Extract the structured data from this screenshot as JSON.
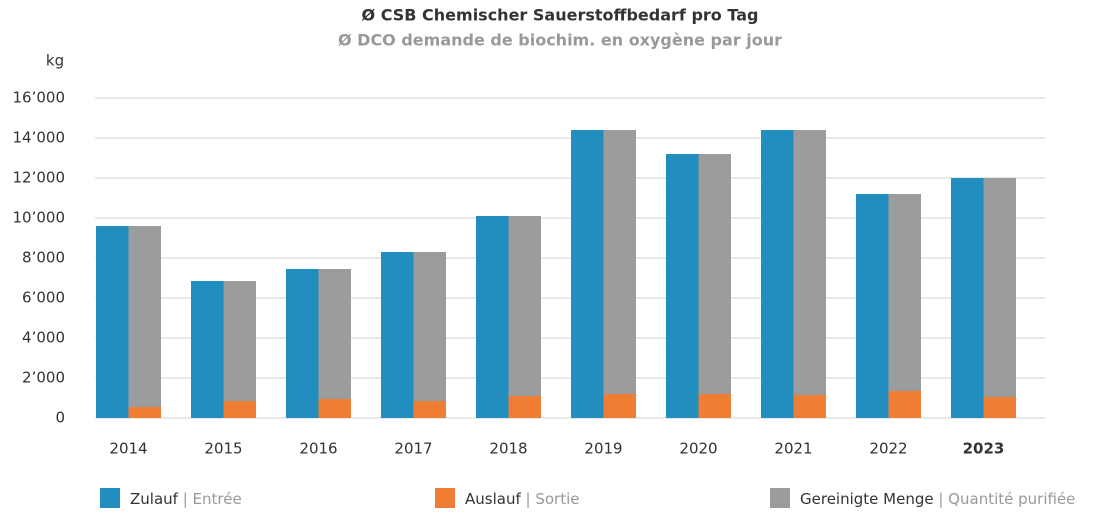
{
  "chart_data": {
    "type": "bar",
    "stacked": true,
    "title": "Ø CSB Chemischer Sauerstoffbedarf pro Tag",
    "subtitle": "Ø DCO demande de biochim. en oxygène par jour",
    "y_label": "kg",
    "categories": [
      "2014",
      "2015",
      "2016",
      "2017",
      "2018",
      "2019",
      "2020",
      "2021",
      "2022",
      "2023"
    ],
    "series": [
      {
        "name": "Zulauf | Entrée",
        "color": "#228dbf",
        "stack": "a",
        "values": [
          9600,
          6850,
          7450,
          8300,
          10100,
          14400,
          13200,
          14400,
          11200,
          12000
        ]
      },
      {
        "name": "Auslauf | Sortie",
        "color": "#ef7d33",
        "stack": "b",
        "values": [
          550,
          850,
          950,
          850,
          1100,
          1200,
          1200,
          1150,
          1350,
          1050
        ]
      },
      {
        "name": "Gereinigte Menge | Quantité purifiée",
        "color": "#9a9c9e",
        "stack": "b",
        "values": [
          9050,
          6000,
          6500,
          7450,
          9000,
          13200,
          12000,
          13250,
          9850,
          10950
        ]
      }
    ],
    "ylim": [
      0,
      16000
    ],
    "yticks": [
      0,
      {
        "value": 2000,
        "label": "2’000"
      },
      {
        "value": 4000,
        "label": "4’000"
      },
      {
        "value": 6000,
        "label": "6’000"
      },
      {
        "value": 8000,
        "label": "8’000"
      },
      {
        "value": 10000,
        "label": "10’000"
      },
      {
        "value": 12000,
        "label": "12’000"
      },
      {
        "value": 14000,
        "label": "14’000"
      },
      {
        "value": 16000,
        "label": "16’000"
      }
    ],
    "grid": true
  }
}
